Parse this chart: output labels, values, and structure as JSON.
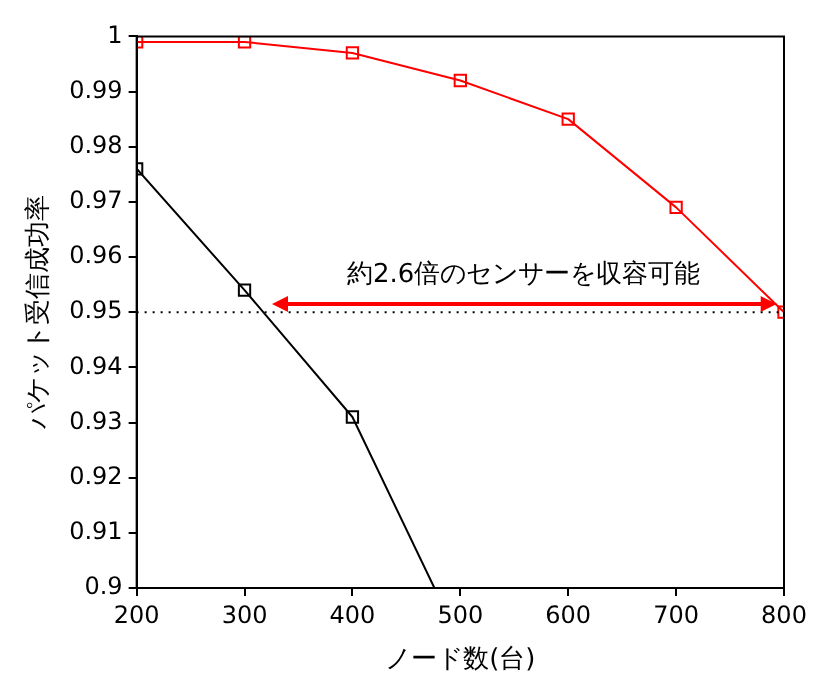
{
  "chart_data": {
    "type": "line",
    "xlabel": "ノード数(台)",
    "ylabel": "パケット受信成功率",
    "xlim": [
      200,
      800
    ],
    "xticks": [
      200,
      300,
      400,
      500,
      600,
      700,
      800
    ],
    "ylim": [
      0.9,
      1
    ],
    "yticks": [
      0.9,
      0.91,
      0.92,
      0.93,
      0.94,
      0.95,
      0.96,
      0.97,
      0.98,
      0.99,
      1
    ],
    "grid": false,
    "legend": false,
    "marker": "square",
    "series": [
      {
        "color": "#ff0000",
        "x": [
          200,
          300,
          400,
          500,
          600,
          700,
          800
        ],
        "values": [
          0.999,
          0.999,
          0.997,
          0.992,
          0.985,
          0.969,
          0.95
        ]
      },
      {
        "color": "#000000",
        "x": [
          200,
          300,
          400,
          476
        ],
        "values": [
          0.976,
          0.954,
          0.931,
          0.9
        ]
      }
    ],
    "ref_lines": [
      {
        "axis": "y",
        "value": 0.95,
        "color": "#000000",
        "line_style": "dotted"
      }
    ],
    "annotations": [
      "約2.6倍のセンサーを収容可能"
    ]
  }
}
